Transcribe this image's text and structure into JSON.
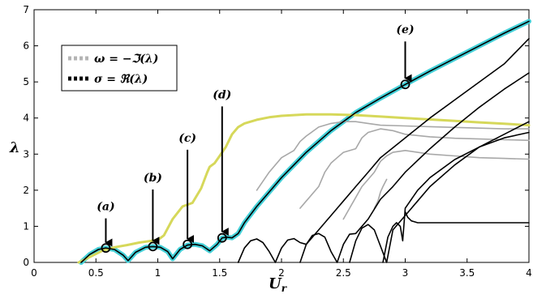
{
  "chart_data": {
    "type": "line",
    "xlabel": "U",
    "xlabel_sub": "r",
    "ylabel": "λ",
    "xlim": [
      0,
      4
    ],
    "ylim": [
      0,
      7
    ],
    "xticks": [
      0,
      0.5,
      1,
      1.5,
      2,
      2.5,
      3,
      3.5,
      4
    ],
    "xtick_labels": [
      "0",
      "0.5",
      "1",
      "1.5",
      "2",
      "2.5",
      "3",
      "3.5",
      "4"
    ],
    "yticks": [
      0,
      1,
      2,
      3,
      4,
      5,
      6,
      7
    ],
    "ytick_labels": [
      "0",
      "1",
      "2",
      "3",
      "4",
      "5",
      "6",
      "7"
    ],
    "grid": false,
    "legend": {
      "placement": "top-left",
      "entries": [
        {
          "label": "ω = −ℑ(λ)",
          "color": "#b4b4b4",
          "style": "dotted"
        },
        {
          "label": "σ = ℜ(λ)",
          "color": "#000000",
          "style": "dotted"
        }
      ]
    },
    "colors": {
      "imag_envelope": "#d6d85a",
      "real_envelope": "#44d0d8",
      "imag": "#a8a8a8",
      "real": "#000000"
    },
    "series": [
      {
        "kind": "envelope",
        "color_key": "real_envelope",
        "width": 6,
        "x": [
          0.38,
          0.45,
          0.52,
          0.58,
          0.65,
          0.72,
          0.76,
          0.82,
          0.9,
          0.96,
          1.02,
          1.08,
          1.12,
          1.18,
          1.24,
          1.3,
          1.36,
          1.42,
          1.48,
          1.52,
          1.56,
          1.6,
          1.65,
          1.7,
          1.8,
          1.9,
          2.0,
          2.2,
          2.4,
          2.6,
          2.8,
          3.0,
          3.2,
          3.4,
          3.6,
          3.8,
          4.0
        ],
        "y": [
          0.0,
          0.22,
          0.36,
          0.4,
          0.36,
          0.2,
          0.05,
          0.28,
          0.42,
          0.44,
          0.42,
          0.3,
          0.1,
          0.36,
          0.48,
          0.5,
          0.46,
          0.32,
          0.5,
          0.68,
          0.7,
          0.68,
          0.8,
          1.1,
          1.55,
          1.95,
          2.35,
          3.05,
          3.65,
          4.15,
          4.55,
          4.93,
          5.3,
          5.65,
          6.0,
          6.35,
          6.68
        ]
      },
      {
        "kind": "envelope",
        "color_key": "imag_envelope",
        "width": 3,
        "x": [
          0.36,
          0.45,
          0.55,
          0.65,
          0.75,
          0.85,
          0.95,
          1.0,
          1.05,
          1.12,
          1.2,
          1.28,
          1.35,
          1.4,
          1.42,
          1.46,
          1.5,
          1.55,
          1.6,
          1.65,
          1.7,
          1.8,
          1.9,
          2.0,
          2.2,
          2.4,
          2.6,
          2.8,
          3.0,
          3.2,
          3.4,
          3.6,
          3.8,
          4.0
        ],
        "y": [
          0.0,
          0.15,
          0.32,
          0.42,
          0.48,
          0.55,
          0.6,
          0.62,
          0.75,
          1.2,
          1.55,
          1.65,
          2.05,
          2.5,
          2.65,
          2.75,
          2.95,
          3.2,
          3.55,
          3.75,
          3.85,
          3.95,
          4.02,
          4.06,
          4.1,
          4.1,
          4.08,
          4.04,
          4.0,
          3.96,
          3.92,
          3.88,
          3.84,
          3.8
        ]
      },
      {
        "kind": "real",
        "color_key": "real",
        "width": 1.6,
        "x": [
          0.38,
          0.45,
          0.52,
          0.58,
          0.65,
          0.72,
          0.76,
          0.82,
          0.9,
          0.96,
          1.02,
          1.08,
          1.12,
          1.18,
          1.24,
          1.3,
          1.36,
          1.42,
          1.48,
          1.52,
          1.56,
          1.6,
          1.65,
          1.7,
          1.8,
          1.9,
          2.0,
          2.2,
          2.4,
          2.6,
          2.8,
          3.0,
          3.2,
          3.4,
          3.6,
          3.8,
          4.0
        ],
        "y": [
          0.0,
          0.22,
          0.36,
          0.4,
          0.36,
          0.2,
          0.05,
          0.28,
          0.42,
          0.44,
          0.42,
          0.3,
          0.1,
          0.36,
          0.48,
          0.5,
          0.46,
          0.32,
          0.5,
          0.68,
          0.7,
          0.68,
          0.8,
          1.1,
          1.55,
          1.95,
          2.35,
          3.05,
          3.65,
          4.15,
          4.55,
          4.93,
          5.3,
          5.65,
          6.0,
          6.35,
          6.68
        ]
      },
      {
        "kind": "real",
        "color_key": "real",
        "width": 1.6,
        "x": [
          1.65,
          1.7,
          1.75,
          1.8,
          1.85,
          1.9,
          1.95,
          2.0,
          2.05,
          2.1,
          2.15,
          2.2,
          2.3,
          2.4,
          2.5,
          2.6,
          2.7,
          2.8,
          3.0,
          3.2,
          3.4,
          3.6,
          3.8,
          4.0
        ],
        "y": [
          0.0,
          0.4,
          0.6,
          0.65,
          0.55,
          0.3,
          0.0,
          0.4,
          0.62,
          0.66,
          0.55,
          0.5,
          0.9,
          1.3,
          1.7,
          2.1,
          2.5,
          2.9,
          3.45,
          4.0,
          4.5,
          5.0,
          5.5,
          6.2
        ]
      },
      {
        "kind": "real",
        "color_key": "real",
        "width": 1.6,
        "x": [
          2.15,
          2.2,
          2.25,
          2.3,
          2.35,
          2.4,
          2.45,
          2.5,
          2.55,
          2.6,
          2.7,
          2.8,
          2.9,
          3.0,
          3.2,
          3.4,
          3.6,
          3.8,
          4.0
        ],
        "y": [
          0.0,
          0.5,
          0.75,
          0.8,
          0.7,
          0.3,
          0.0,
          0.5,
          0.78,
          0.8,
          1.2,
          1.75,
          2.1,
          2.5,
          3.15,
          3.75,
          4.3,
          4.8,
          5.25
        ]
      },
      {
        "kind": "real",
        "color_key": "real",
        "width": 1.6,
        "x": [
          2.55,
          2.6,
          2.65,
          2.7,
          2.75,
          2.8,
          2.85,
          2.9,
          3.0,
          3.1,
          3.2,
          3.4,
          3.6,
          3.8,
          4.0
        ],
        "y": [
          0.0,
          0.6,
          0.95,
          1.05,
          0.9,
          0.45,
          0.0,
          0.9,
          1.3,
          1.7,
          2.1,
          2.7,
          3.2,
          3.55,
          3.9
        ]
      },
      {
        "kind": "real",
        "color_key": "real",
        "width": 1.6,
        "x": [
          2.82,
          2.86,
          2.9,
          2.93,
          2.96,
          2.98,
          3.0,
          3.1,
          3.2,
          3.4,
          3.6,
          3.8,
          4.0
        ],
        "y": [
          0.0,
          0.7,
          1.0,
          1.1,
          1.0,
          0.6,
          1.5,
          2.0,
          2.35,
          2.85,
          3.2,
          3.45,
          3.6
        ]
      },
      {
        "kind": "real",
        "color_key": "real",
        "width": 1.6,
        "x": [
          3.0,
          3.02,
          3.05,
          3.1,
          3.2,
          3.4,
          3.6,
          3.8,
          4.0
        ],
        "y": [
          1.4,
          1.25,
          1.15,
          1.1,
          1.1,
          1.1,
          1.1,
          1.1,
          1.1
        ]
      },
      {
        "kind": "imag",
        "color_key": "imag",
        "width": 1.6,
        "x": [
          1.8,
          1.9,
          2.0,
          2.1,
          2.15,
          2.2,
          2.3,
          2.4,
          2.5,
          2.6,
          2.7,
          2.8,
          3.0,
          3.2,
          3.4,
          3.6,
          3.8,
          4.0
        ],
        "y": [
          2.0,
          2.5,
          2.9,
          3.1,
          3.35,
          3.5,
          3.75,
          3.85,
          3.9,
          3.9,
          3.85,
          3.8,
          3.78,
          3.76,
          3.74,
          3.72,
          3.7,
          3.7
        ]
      },
      {
        "kind": "imag",
        "color_key": "imag",
        "width": 1.6,
        "x": [
          2.15,
          2.2,
          2.3,
          2.35,
          2.4,
          2.45,
          2.5,
          2.6,
          2.65,
          2.7,
          2.8,
          2.9,
          3.0,
          3.2,
          3.4,
          3.6,
          3.8,
          4.0
        ],
        "y": [
          1.5,
          1.7,
          2.1,
          2.5,
          2.75,
          2.9,
          3.05,
          3.15,
          3.45,
          3.6,
          3.7,
          3.65,
          3.55,
          3.48,
          3.44,
          3.42,
          3.4,
          3.38
        ]
      },
      {
        "kind": "imag",
        "color_key": "imag",
        "width": 1.6,
        "x": [
          2.5,
          2.55,
          2.6,
          2.65,
          2.7,
          2.75,
          2.8,
          2.85,
          2.9,
          3.0,
          3.2,
          3.4,
          3.6,
          3.8,
          4.0
        ],
        "y": [
          1.2,
          1.5,
          1.8,
          2.1,
          2.3,
          2.5,
          2.8,
          2.95,
          3.05,
          3.1,
          3.0,
          2.95,
          2.9,
          2.88,
          2.86
        ]
      },
      {
        "kind": "imag",
        "color_key": "imag",
        "width": 1.6,
        "x": [
          2.75,
          2.78,
          2.8,
          2.82,
          2.85
        ],
        "y": [
          1.5,
          1.7,
          1.95,
          2.1,
          2.3
        ]
      }
    ],
    "markers": [
      {
        "x": 0.58,
        "y": 0.4
      },
      {
        "x": 0.96,
        "y": 0.44
      },
      {
        "x": 1.24,
        "y": 0.5
      },
      {
        "x": 1.52,
        "y": 0.68
      },
      {
        "x": 3.0,
        "y": 4.93
      }
    ],
    "annotations": [
      {
        "label": "(a)",
        "x": 0.58,
        "y_top": 1.4,
        "y_tip": 0.55
      },
      {
        "label": "(b)",
        "x": 0.96,
        "y_top": 2.2,
        "y_tip": 0.6
      },
      {
        "label": "(c)",
        "x": 1.24,
        "y_top": 3.3,
        "y_tip": 0.65
      },
      {
        "label": "(d)",
        "x": 1.52,
        "y_top": 4.5,
        "y_tip": 0.85
      },
      {
        "label": "(e)",
        "x": 3.0,
        "y_top": 6.3,
        "y_tip": 5.1
      }
    ]
  }
}
